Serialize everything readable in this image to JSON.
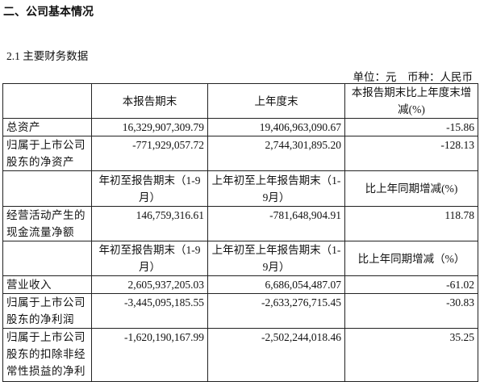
{
  "section_title": "二、公司基本情况",
  "subsection_title": "2.1 主要财务数据",
  "unit_line": "单位：元　币种：人民币",
  "header1": [
    "",
    "本报告期末",
    "上年度末",
    "本报告期末比上年度末增减(%)"
  ],
  "rows1": [
    {
      "label": "总资产",
      "current": "16,329,907,309.79",
      "previous": "19,406,963,090.67",
      "change": "-15.86"
    },
    {
      "label": "归属于上市公司股东的净资产",
      "current": "-771,929,057.72",
      "previous": "2,744,301,895.20",
      "change": "-128.13"
    }
  ],
  "header2": [
    "",
    "年初至报告期末（1-9月）",
    "上年初至上年报告期末（1-9月）",
    "比上年同期增减(%)"
  ],
  "rows2": [
    {
      "label": "经营活动产生的现金流量净额",
      "current": "146,759,316.61",
      "previous": "-781,648,904.91",
      "change": "118.78"
    }
  ],
  "header3": [
    "",
    "年初至报告期末（1-9月）",
    "上年初至上年报告期末（1-9月）",
    "比上年同期增减（%）"
  ],
  "rows3": [
    {
      "label": "营业收入",
      "current": "2,605,937,205.03",
      "previous": "6,686,054,487.07",
      "change": "-61.02"
    },
    {
      "label": "归属于上市公司股东的净利润",
      "current": "-3,445,095,185.55",
      "previous": "-2,633,276,715.45",
      "change": "-30.83"
    },
    {
      "label": "归属于上市公司股东的扣除非经常性损益的净利",
      "current": "-1,620,190,167.99",
      "previous": "-2,502,244,018.46",
      "change": "35.25"
    }
  ]
}
